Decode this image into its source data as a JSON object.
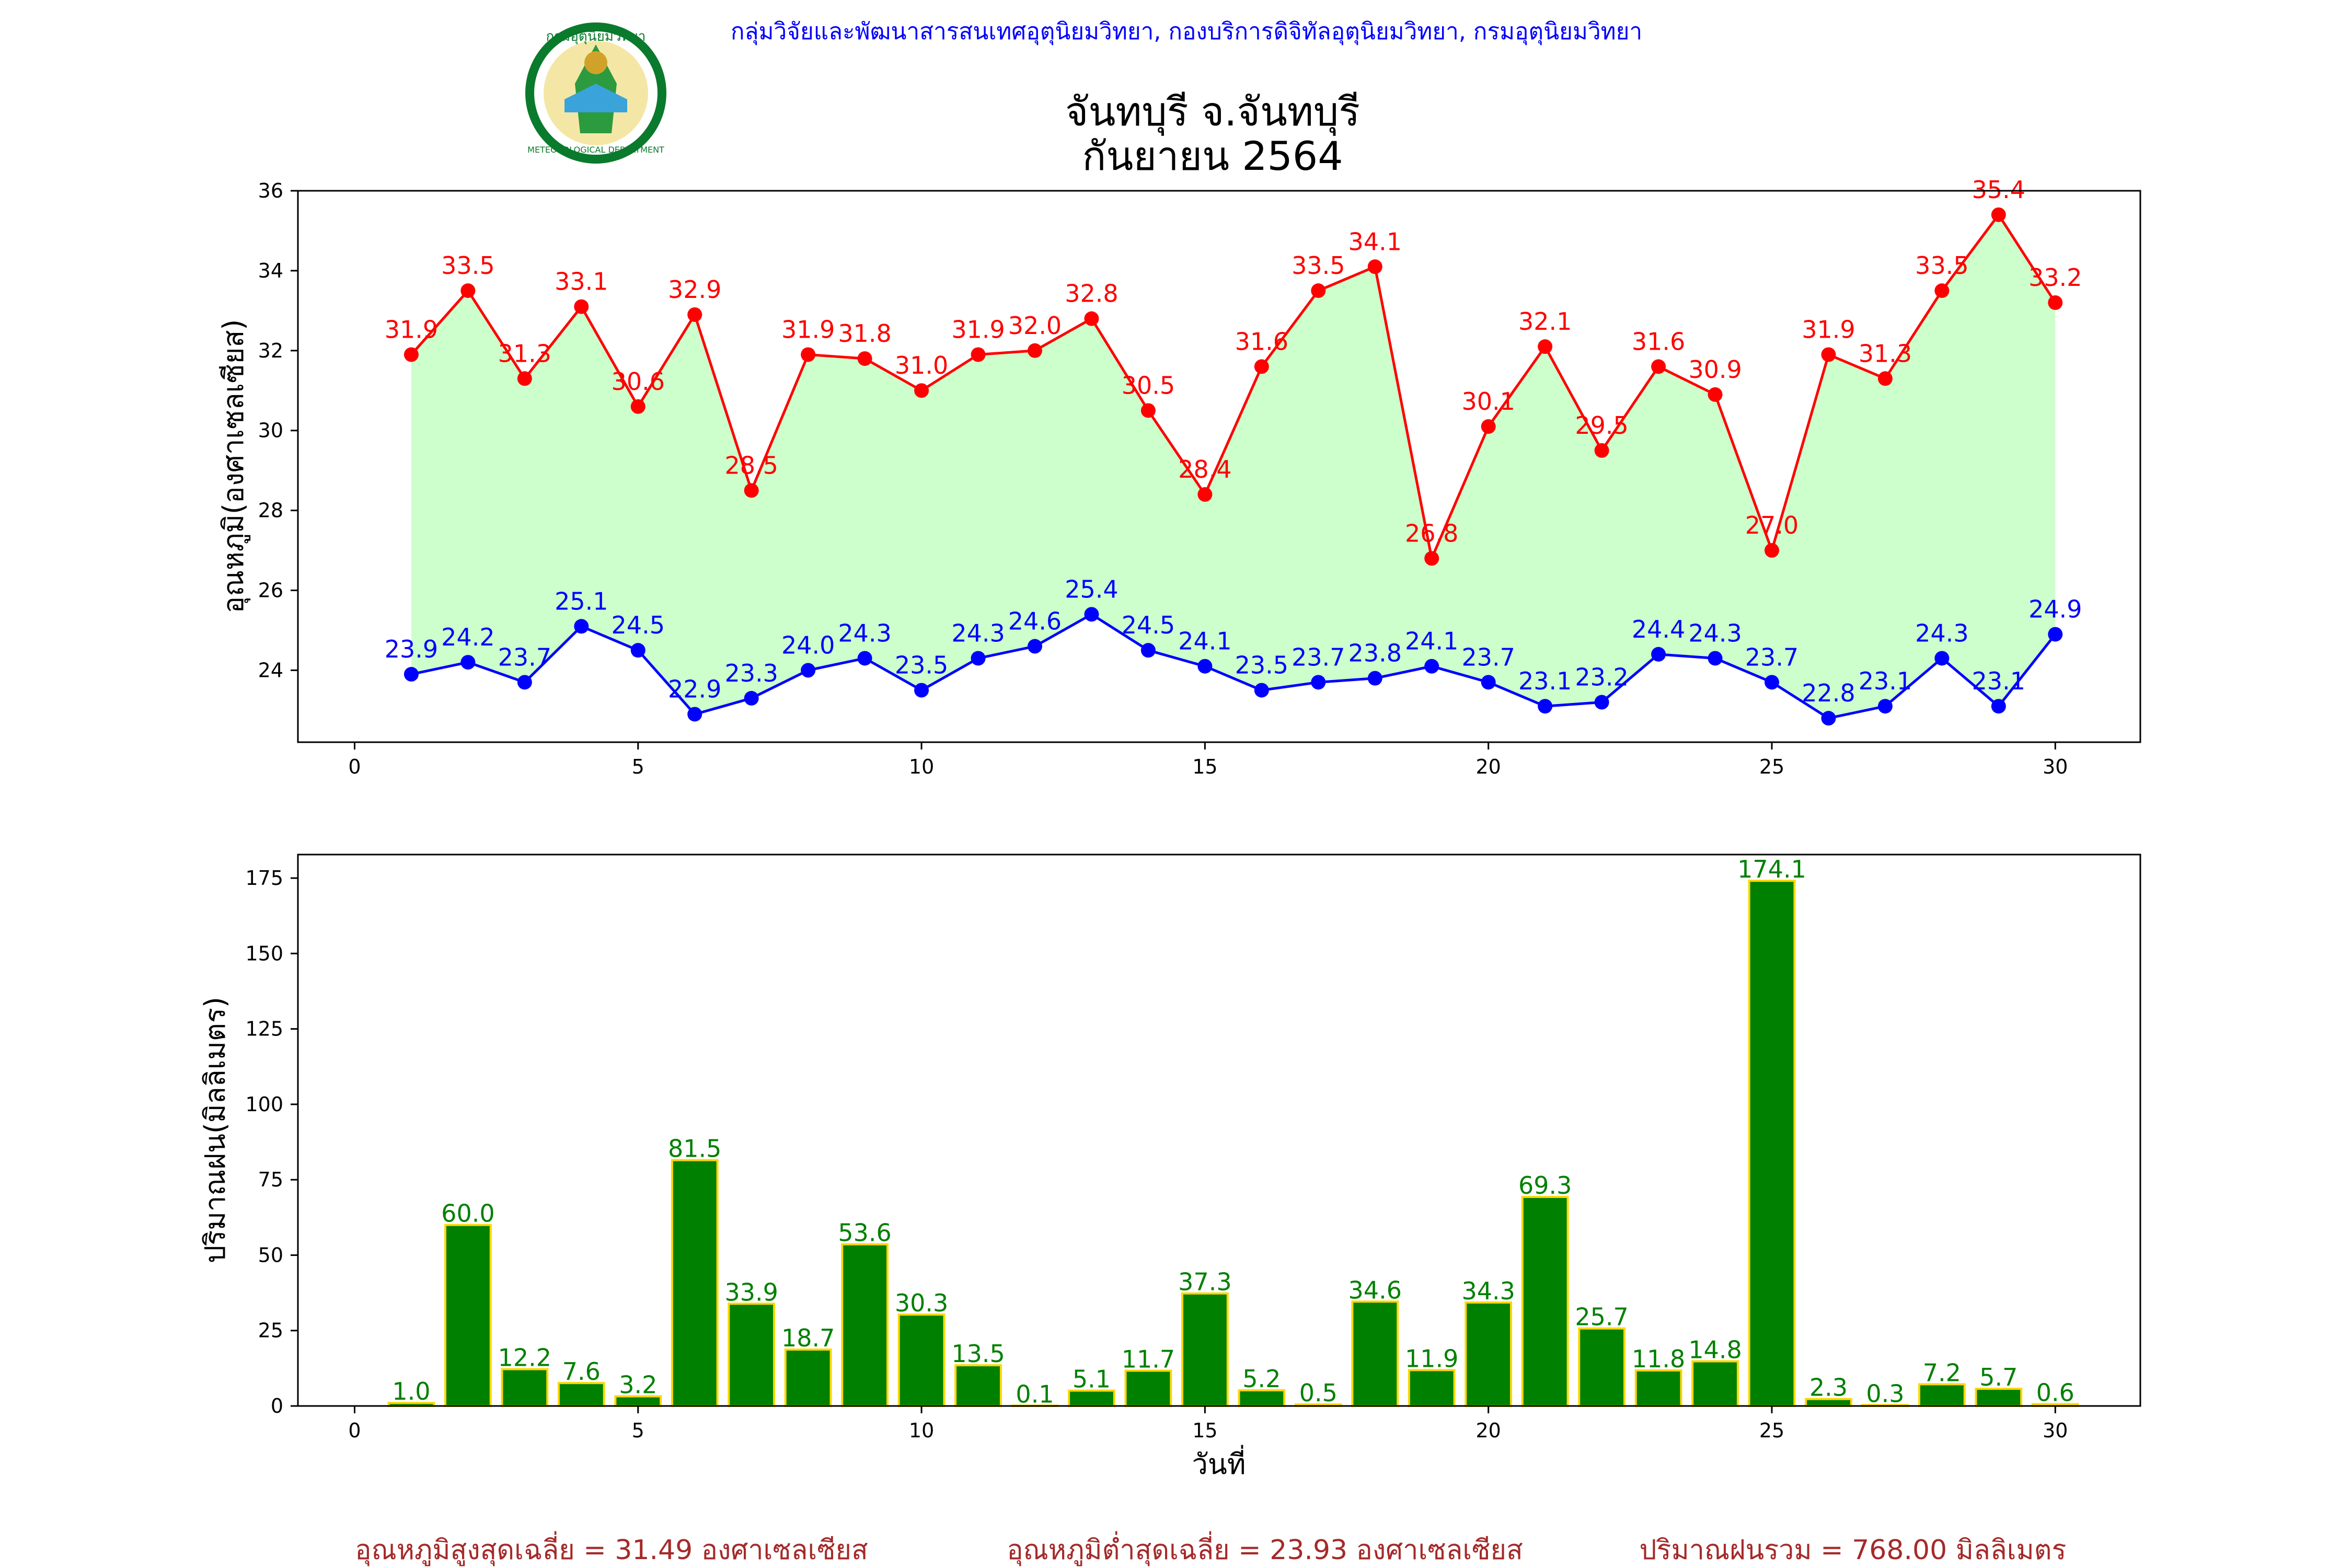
{
  "header": {
    "agency_line": "กลุ่มวิจัยและพัฒนาสารสนเทศอุตุนิยมวิทยา, กองบริการดิจิทัลอุตุนิยมวิทยา, กรมอุตุนิยมวิทยา",
    "title_line1": "จันทบุรี จ.จันทบุรี",
    "title_line2": "กันยายน 2564",
    "logo": {
      "icon": "meteorological-department-seal-icon",
      "text_top": "กรมอุตุนิยมวิทยา",
      "text_bottom": "METEOROLOGICAL DEPARTMENT"
    }
  },
  "chart_data": [
    {
      "type": "line",
      "ylabel": "อุณหภูมิ(องศาเซลเซียส)",
      "xlabel": "",
      "xlim": [
        -1,
        31.5
      ],
      "ylim": [
        22.2,
        36
      ],
      "xticks": [
        0,
        5,
        10,
        15,
        20,
        25,
        30
      ],
      "yticks": [
        24,
        26,
        28,
        30,
        32,
        34,
        36
      ],
      "x": [
        1,
        2,
        3,
        4,
        5,
        6,
        7,
        8,
        9,
        10,
        11,
        12,
        13,
        14,
        15,
        16,
        17,
        18,
        19,
        20,
        21,
        22,
        23,
        24,
        25,
        26,
        27,
        28,
        29,
        30
      ],
      "series": [
        {
          "key": "max",
          "color": "#ff0000",
          "values": [
            31.9,
            33.5,
            31.3,
            33.1,
            30.6,
            32.9,
            28.5,
            31.9,
            31.8,
            31.0,
            31.9,
            32.0,
            32.8,
            30.5,
            28.4,
            31.6,
            33.5,
            34.1,
            26.8,
            30.1,
            32.1,
            29.5,
            31.6,
            30.9,
            27.0,
            31.9,
            31.3,
            33.5,
            35.4,
            33.2
          ]
        },
        {
          "key": "min",
          "color": "#0000ff",
          "values": [
            23.9,
            24.2,
            23.7,
            25.1,
            24.5,
            22.9,
            23.3,
            24.0,
            24.3,
            23.5,
            24.3,
            24.6,
            25.4,
            24.5,
            24.1,
            23.5,
            23.7,
            23.8,
            24.1,
            23.7,
            23.1,
            23.2,
            24.4,
            24.3,
            23.7,
            22.8,
            23.1,
            24.3,
            23.1,
            24.9
          ]
        }
      ],
      "fill_between_color": "#ccffcc",
      "grid": false
    },
    {
      "type": "bar",
      "ylabel": "ปริมาณฝน(มิลลิเมตร)",
      "xlabel": "วันที่",
      "xlim": [
        -1,
        31.5
      ],
      "ylim": [
        0,
        182.8
      ],
      "xticks": [
        0,
        5,
        10,
        15,
        20,
        25,
        30
      ],
      "yticks": [
        0,
        25,
        50,
        75,
        100,
        125,
        150,
        175
      ],
      "x": [
        1,
        2,
        3,
        4,
        5,
        6,
        7,
        8,
        9,
        10,
        11,
        12,
        13,
        14,
        15,
        16,
        17,
        18,
        19,
        20,
        21,
        22,
        23,
        24,
        25,
        26,
        27,
        28,
        29,
        30
      ],
      "values": [
        1.0,
        60.0,
        12.2,
        7.6,
        3.2,
        81.5,
        33.9,
        18.7,
        53.6,
        30.3,
        13.5,
        0.1,
        5.1,
        11.7,
        37.3,
        5.2,
        0.5,
        34.6,
        11.9,
        34.3,
        69.3,
        25.7,
        11.8,
        14.8,
        174.1,
        2.3,
        0.3,
        7.2,
        5.7,
        0.6
      ],
      "bar_color": "#008000",
      "edge_color": "#ffd700",
      "label_color": "#008000",
      "grid": false
    }
  ],
  "footer": {
    "avg_max": "อุณหภูมิสูงสุดเฉลี่ย = 31.49 องศาเซลเซียส",
    "avg_min": "อุณหภูมิต่ำสุดเฉลี่ย = 23.93 องศาเซลเซียส",
    "total_rain": "ปริมาณฝนรวม = 768.00 มิลลิเมตร",
    "color": "#a52a2a"
  }
}
